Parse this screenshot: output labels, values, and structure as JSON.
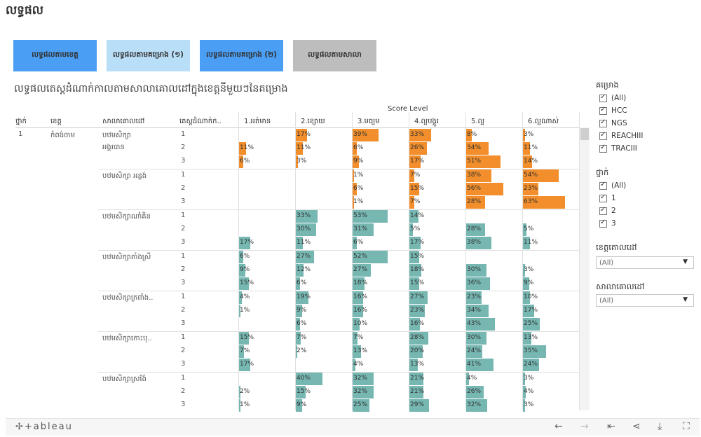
{
  "page_title": "លទ្ធផល",
  "tabs": [
    {
      "label": "លទ្ធផលតាមខេត្ត",
      "bg": "#4a9ff5"
    },
    {
      "label": "លទ្ធផលតាមគម្រោង (១)",
      "bg": "#b9def7"
    },
    {
      "label": "លទ្ធផលតាមគម្រោង (២)",
      "bg": "#4a9ff5"
    },
    {
      "label": "លទ្ធផលតាមសាលា",
      "bg": "#bdbdbd"
    }
  ],
  "chart_title": "លទ្ធផលតេស្តដំណាក់កាលតាមសាលាគោលដៅក្នុងខេត្តនីមួយៗនៃគម្រោង",
  "table": {
    "score_level_label": "Score Level",
    "columns": [
      "ថ្នាក់",
      "ខេត្ត",
      "សាលាគោលដៅ",
      "តេស្តដំណាក់ក.."
    ],
    "levels": [
      "1.អត់មាន",
      "2.ខ្សោយ",
      "3.មធ្យម",
      "4.ល្អបង្គួរ",
      "5.ល្អ",
      "6.ល្អណាស់"
    ],
    "grade": "1",
    "province": "កំពង់ចាម",
    "colors": {
      "orange": "#f28e2b",
      "teal": "#76b7b2"
    }
  },
  "chart_data": {
    "type": "table",
    "columns": [
      "1.អត់មាន",
      "2.ខ្សោយ",
      "3.មធ្យម",
      "4.ល្អបង្គួរ",
      "5.ល្អ",
      "6.ល្អណាស់"
    ],
    "schools": [
      {
        "name": [
          "បឋមសិក្សា",
          "អង្គរបាន"
        ],
        "color": "orange",
        "rows": [
          {
            "test": "1",
            "values": [
              null,
              17,
              39,
              33,
              8,
              3
            ]
          },
          {
            "test": "2",
            "values": [
              11,
              11,
              6,
              26,
              34,
              11
            ]
          },
          {
            "test": "3",
            "values": [
              6,
              3,
              9,
              17,
              51,
              14
            ]
          }
        ]
      },
      {
        "name": [
          "បឋមសិក្សា អន្លង់"
        ],
        "color": "orange",
        "rows": [
          {
            "test": "1",
            "values": [
              null,
              null,
              1,
              7,
              38,
              54
            ]
          },
          {
            "test": "2",
            "values": [
              null,
              null,
              6,
              15,
              56,
              23
            ]
          },
          {
            "test": "3",
            "values": [
              null,
              null,
              1,
              7,
              28,
              63
            ]
          }
        ]
      },
      {
        "name": [
          "បឋមសិក្សាណាំគិន"
        ],
        "color": "teal",
        "rows": [
          {
            "test": "1",
            "values": [
              null,
              33,
              53,
              14,
              null,
              null
            ]
          },
          {
            "test": "2",
            "values": [
              null,
              30,
              31,
              5,
              28,
              5
            ]
          },
          {
            "test": "3",
            "values": [
              17,
              11,
              6,
              17,
              38,
              11
            ]
          }
        ]
      },
      {
        "name": [
          "បឋមសិក្សាតាំងស្រី"
        ],
        "color": "teal",
        "rows": [
          {
            "test": "1",
            "values": [
              6,
              27,
              52,
              15,
              null,
              null
            ]
          },
          {
            "test": "2",
            "values": [
              9,
              12,
              27,
              18,
              30,
              3
            ]
          },
          {
            "test": "3",
            "values": [
              15,
              6,
              18,
              15,
              36,
              9
            ]
          }
        ]
      },
      {
        "name": [
          "បឋមសិក្សាក្រពាំង.."
        ],
        "color": "teal",
        "rows": [
          {
            "test": "1",
            "values": [
              4,
              19,
              16,
              27,
              23,
              10
            ]
          },
          {
            "test": "2",
            "values": [
              1,
              9,
              16,
              23,
              34,
              17
            ]
          },
          {
            "test": "3",
            "values": [
              null,
              6,
              10,
              16,
              43,
              25
            ]
          }
        ]
      },
      {
        "name": [
          "បឋមសិក្សាកោះបុ.."
        ],
        "color": "teal",
        "rows": [
          {
            "test": "1",
            "values": [
              15,
              7,
              7,
              28,
              30,
              13
            ]
          },
          {
            "test": "2",
            "values": [
              7,
              2,
              13,
              20,
              24,
              35
            ]
          },
          {
            "test": "3",
            "values": [
              17,
              null,
              4,
              13,
              41,
              24
            ]
          }
        ]
      },
      {
        "name": [
          "បឋមសិក្សាស្រង៉ែ"
        ],
        "color": "teal",
        "rows": [
          {
            "test": "1",
            "values": [
              null,
              40,
              32,
              21,
              4,
              3
            ]
          },
          {
            "test": "2",
            "values": [
              2,
              15,
              32,
              21,
              26,
              4
            ]
          },
          {
            "test": "3",
            "values": [
              1,
              9,
              25,
              29,
              32,
              3
            ]
          }
        ]
      }
    ]
  },
  "filters": {
    "project": {
      "title": "គម្រោង",
      "items": [
        "(All)",
        "HCC",
        "NGS",
        "REACHIII",
        "TRACIII"
      ]
    },
    "grade": {
      "title": "ថ្នាក់",
      "items": [
        "(All)",
        "1",
        "2",
        "3"
      ]
    },
    "target_province": {
      "title": "ខេត្តគោលដៅ",
      "value": "(All)"
    },
    "target_school": {
      "title": "សាលាគោលដៅ",
      "value": "(All)"
    }
  },
  "footer": {
    "logo": "✢+ableau"
  }
}
